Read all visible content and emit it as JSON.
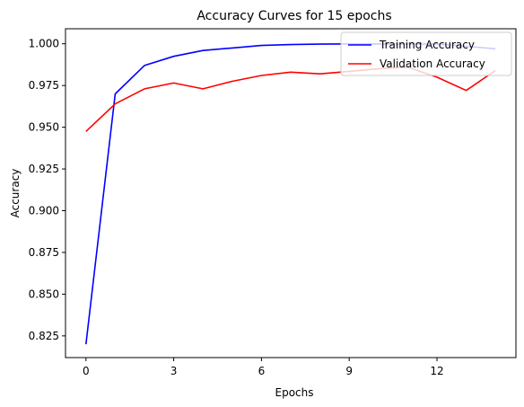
{
  "chart_data": {
    "type": "line",
    "title": "Accuracy Curves for 15 epochs",
    "xlabel": "Epochs",
    "ylabel": "Accuracy",
    "xlim": [
      -0.7,
      14.7
    ],
    "ylim": [
      0.812,
      1.009
    ],
    "xticks": [
      0,
      3,
      6,
      9,
      12
    ],
    "yticks": [
      0.825,
      0.85,
      0.875,
      0.9,
      0.925,
      0.95,
      0.975,
      1.0
    ],
    "ytick_labels": [
      "0.825",
      "0.850",
      "0.875",
      "0.900",
      "0.925",
      "0.950",
      "0.975",
      "1.000"
    ],
    "grid": false,
    "legend_position": "top-right",
    "x": [
      0,
      1,
      2,
      3,
      4,
      5,
      6,
      7,
      8,
      9,
      10,
      11,
      12,
      13,
      14
    ],
    "series": [
      {
        "name": "Training Accuracy",
        "color": "#0000ff",
        "values": [
          0.82,
          0.97,
          0.987,
          0.9925,
          0.996,
          0.9975,
          0.999,
          0.9995,
          0.9998,
          0.9999,
          0.9999,
          0.9999,
          0.9999,
          0.9985,
          0.997
        ]
      },
      {
        "name": "Validation Accuracy",
        "color": "#ff0000",
        "values": [
          0.9475,
          0.964,
          0.973,
          0.9765,
          0.973,
          0.9775,
          0.981,
          0.983,
          0.982,
          0.9835,
          0.985,
          0.986,
          0.98,
          0.972,
          0.984
        ]
      }
    ]
  }
}
